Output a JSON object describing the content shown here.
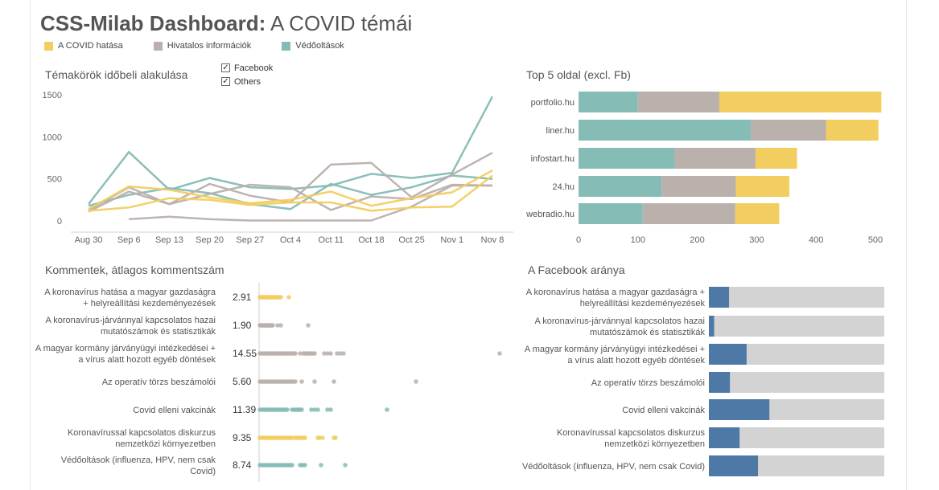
{
  "header": {
    "title_bold": "CSS-Milab Dashboard:",
    "title_rest": " A COVID témái"
  },
  "legend": [
    {
      "label": "A COVID hatása",
      "color": "#f2cd60"
    },
    {
      "label": "Hivatalos információk",
      "color": "#bab0ac"
    },
    {
      "label": "Védőoltások",
      "color": "#86bcb6"
    }
  ],
  "filters": [
    {
      "label": "Facebook",
      "checked": true
    },
    {
      "label": "Others",
      "checked": true
    }
  ],
  "colors": {
    "covid": "#f2cd60",
    "official": "#bab0ac",
    "vaccine": "#86bcb6",
    "fb": "#4e79a7",
    "rest": "#d3d3d3"
  },
  "sections": {
    "line_title": "Témakörök időbeli alakulása",
    "top5_title": "Top 5 oldal (excl. Fb)",
    "comments_title": "Kommentek, átlagos kommentszám",
    "fb_title": "A Facebook aránya"
  },
  "chart_data": [
    {
      "id": "line",
      "type": "line",
      "title": "Témakörök időbeli alakulása",
      "categories": [
        "Aug 30",
        "Sep 6",
        "Sep 13",
        "Sep 20",
        "Sep 27",
        "Oct 4",
        "Oct 11",
        "Oct 18",
        "Oct 25",
        "Nov 1",
        "Nov 8"
      ],
      "ylim": [
        0,
        1500
      ],
      "yticks": [
        0,
        500,
        1000,
        1500
      ],
      "grid": false,
      "series": [
        {
          "topic": "vaccine",
          "values": [
            200,
            820,
            370,
            510,
            400,
            380,
            420,
            560,
            510,
            570,
            1480
          ]
        },
        {
          "topic": "vaccine",
          "values": [
            180,
            310,
            390,
            330,
            200,
            140,
            440,
            310,
            400,
            540,
            500
          ]
        },
        {
          "topic": "official",
          "values": [
            110,
            350,
            200,
            440,
            300,
            220,
            670,
            690,
            280,
            550,
            810
          ]
        },
        {
          "topic": "official",
          "values": [
            130,
            400,
            200,
            320,
            430,
            400,
            130,
            290,
            260,
            430,
            420
          ]
        },
        {
          "topic": "official",
          "values": [
            null,
            20,
            50,
            20,
            5,
            5,
            5,
            5,
            170,
            420,
            420
          ]
        },
        {
          "topic": "covid",
          "values": [
            140,
            410,
            370,
            280,
            210,
            250,
            350,
            180,
            270,
            340,
            600
          ]
        },
        {
          "topic": "covid",
          "values": [
            120,
            160,
            270,
            250,
            190,
            220,
            220,
            120,
            160,
            170,
            540
          ]
        }
      ]
    },
    {
      "id": "top5",
      "type": "bar",
      "title": "Top 5 oldal (excl. Fb)",
      "categories": [
        "portfolio.hu",
        "liner.hu",
        "infostart.hu",
        "24.hu",
        "webradio.hu"
      ],
      "xlim": [
        0,
        500
      ],
      "xticks": [
        0,
        100,
        200,
        300,
        400,
        500
      ],
      "series": [
        {
          "name": "Védőoltások",
          "topic": "vaccine",
          "values": [
            100,
            290,
            162,
            140,
            108
          ]
        },
        {
          "name": "Hivatalos információk",
          "topic": "official",
          "values": [
            137,
            127,
            136,
            125,
            156
          ]
        },
        {
          "name": "A COVID hatása",
          "topic": "covid",
          "values": [
            273,
            88,
            70,
            90,
            74
          ]
        }
      ]
    },
    {
      "id": "comments",
      "type": "scatter",
      "title": "Kommentek, átlagos kommentszám",
      "rows": [
        {
          "label": [
            "A koronavírus hatása a magyar gazdaságra",
            "+ helyreállítási kezdeményezések"
          ],
          "avg": "2.91",
          "topic": "covid",
          "dots": [
            0,
            1,
            2,
            3,
            4,
            5,
            6,
            7,
            8,
            9,
            10,
            11,
            12,
            13,
            14,
            15,
            16,
            17,
            18,
            19,
            20,
            22,
            24,
            26,
            36
          ]
        },
        {
          "label": [
            "A koronavírus-járvánnyal kapcsolatos hazai",
            "mutatószámok és statisztikák"
          ],
          "avg": "1.90",
          "topic": "official",
          "dots": [
            0,
            1,
            2,
            3,
            4,
            5,
            6,
            7,
            8,
            9,
            10,
            11,
            12,
            13,
            14,
            15,
            16,
            22,
            26,
            60
          ]
        },
        {
          "label": [
            "A magyar kormány járványügyi intézkedései +",
            "a vírus alatt hozott egyéb döntések"
          ],
          "avg": "14.55",
          "topic": "official",
          "dots": [
            0,
            2,
            4,
            6,
            8,
            10,
            12,
            14,
            16,
            18,
            20,
            22,
            24,
            26,
            28,
            30,
            32,
            34,
            36,
            38,
            40,
            42,
            44,
            50,
            54,
            56,
            58,
            60,
            62,
            64,
            66,
            68,
            80,
            84,
            88,
            96,
            100,
            104,
            298
          ]
        },
        {
          "label": [
            "Az operatív törzs beszámolói"
          ],
          "avg": "5.60",
          "topic": "official",
          "dots": [
            0,
            2,
            4,
            6,
            8,
            10,
            12,
            14,
            16,
            18,
            20,
            22,
            24,
            26,
            28,
            30,
            32,
            34,
            36,
            38,
            40,
            42,
            44,
            52,
            68,
            92,
            194
          ]
        },
        {
          "label": [
            "Covid elleni vakcinák"
          ],
          "avg": "11.39",
          "topic": "vaccine",
          "dots": [
            0,
            2,
            4,
            6,
            8,
            10,
            12,
            14,
            16,
            18,
            20,
            22,
            24,
            26,
            28,
            30,
            32,
            34,
            40,
            42,
            44,
            46,
            48,
            50,
            52,
            64,
            68,
            72,
            84,
            88,
            158
          ]
        },
        {
          "label": [
            "Koronavírussal kapcsolatos diskurzus",
            "nemzetközi környezetben"
          ],
          "avg": "9.35",
          "topic": "covid",
          "dots": [
            0,
            2,
            4,
            6,
            8,
            10,
            12,
            14,
            16,
            18,
            20,
            22,
            24,
            26,
            28,
            30,
            32,
            34,
            36,
            38,
            40,
            44,
            46,
            48,
            50,
            52,
            54,
            56,
            72,
            74,
            78,
            92,
            94
          ]
        },
        {
          "label": [
            "Védőoltások (influenza, HPV, nem csak",
            "Covid)"
          ],
          "avg": "8.74",
          "topic": "vaccine",
          "dots": [
            0,
            2,
            4,
            6,
            8,
            10,
            12,
            14,
            16,
            18,
            20,
            22,
            24,
            26,
            28,
            30,
            32,
            34,
            36,
            38,
            40,
            50,
            52,
            54,
            56,
            76,
            106
          ]
        }
      ]
    },
    {
      "id": "fb_share",
      "type": "bar",
      "title": "A Facebook aránya",
      "xlim": [
        0,
        1
      ],
      "rows": [
        {
          "label": [
            "A koronavírus hatása a magyar gazdaságra +",
            "helyreállítási kezdeményezések"
          ],
          "share": 0.115
        },
        {
          "label": [
            "A koronavírus-járvánnyal kapcsolatos hazai",
            "mutatószámok és statisztikák"
          ],
          "share": 0.03
        },
        {
          "label": [
            "A magyar kormány járványügyi intézkedései +",
            "a vírus alatt hozott egyéb döntések"
          ],
          "share": 0.215
        },
        {
          "label": [
            "Az operatív törzs beszámolói"
          ],
          "share": 0.12
        },
        {
          "label": [
            "Covid elleni vakcinák"
          ],
          "share": 0.345
        },
        {
          "label": [
            "Koronavírussal kapcsolatos diskurzus",
            "nemzetközi környezetben"
          ],
          "share": 0.175
        },
        {
          "label": [
            "Védőoltások (influenza, HPV, nem csak Covid)"
          ],
          "share": 0.28
        }
      ]
    }
  ]
}
